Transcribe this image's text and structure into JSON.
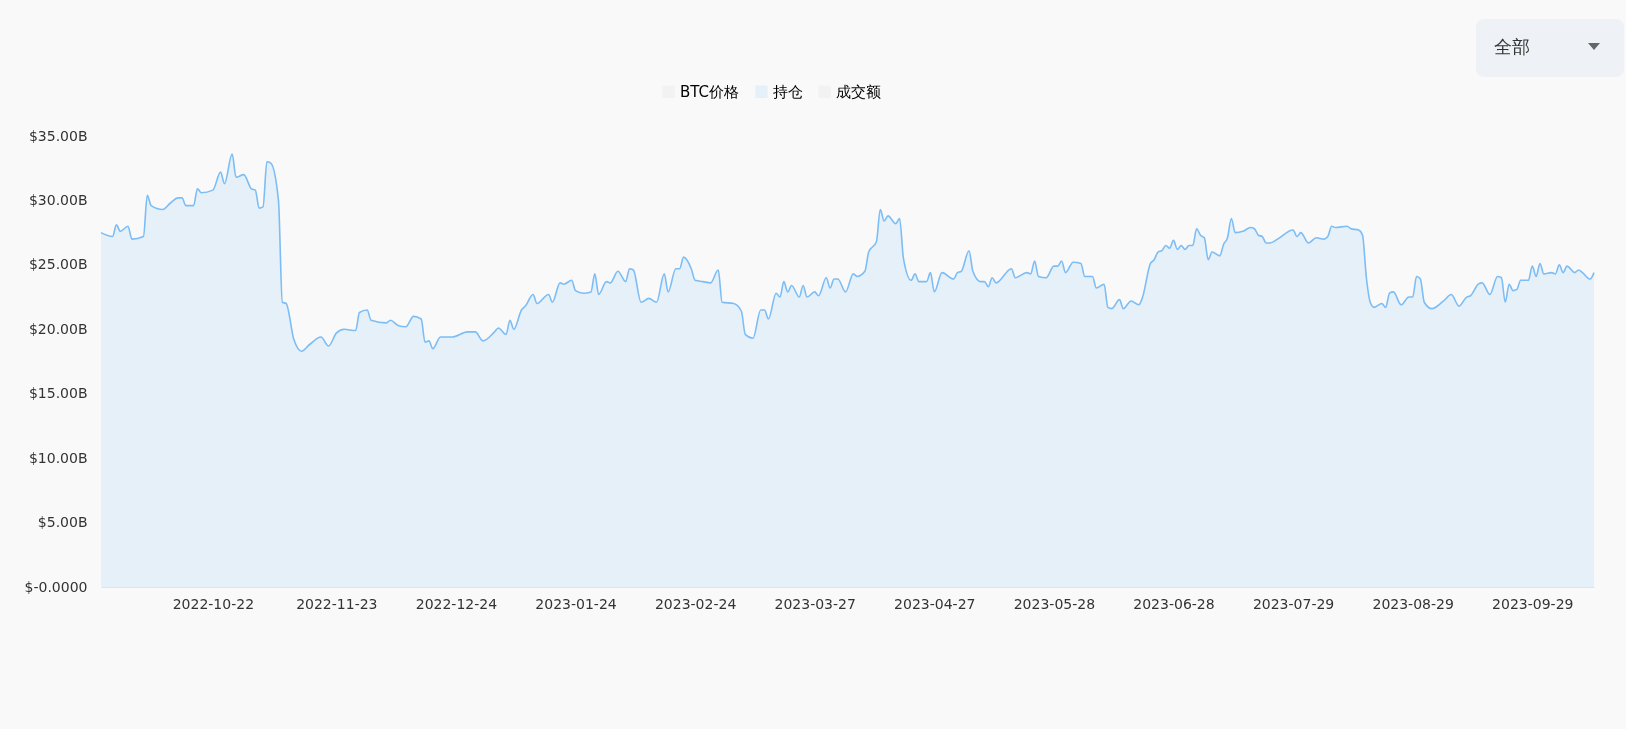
{
  "chart_data": {
    "type": "area",
    "legend": "top",
    "annotations": [
      "全部"
    ],
    "xlim": [
      "2022-09-23",
      "2023-10-15"
    ],
    "xticks": [
      "2022-10-22",
      "2022-11-23",
      "2022-12-24",
      "2023-01-24",
      "2023-02-24",
      "2023-03-27",
      "2023-04-27",
      "2023-05-28",
      "2023-06-28",
      "2023-07-29",
      "2023-08-29",
      "2023-09-29"
    ],
    "ylim": [
      0,
      35
    ],
    "yticks": [
      {
        "value": 0,
        "label": "$-0.0000"
      },
      {
        "value": 5,
        "label": "$5.00B"
      },
      {
        "value": 10,
        "label": "$10.00B"
      },
      {
        "value": 15,
        "label": "$15.00B"
      },
      {
        "value": 20,
        "label": "$20.00B"
      },
      {
        "value": 25,
        "label": "$25.00B"
      },
      {
        "value": 30,
        "label": "$30.00B"
      },
      {
        "value": 35,
        "label": "$35.00B"
      }
    ],
    "series": [
      {
        "name": "BTC价格",
        "color": "#cccccc"
      },
      {
        "name": "持仓",
        "color": "#7cbdf5",
        "x": [
          "2022-09-23",
          "2022-09-26",
          "2022-09-27",
          "2022-09-28",
          "2022-09-30",
          "2022-10-01",
          "2022-10-04",
          "2022-10-05",
          "2022-10-06",
          "2022-10-09",
          "2022-10-11",
          "2022-10-13",
          "2022-10-14",
          "2022-10-15",
          "2022-10-17",
          "2022-10-18",
          "2022-10-19",
          "2022-10-22",
          "2022-10-24",
          "2022-10-25",
          "2022-10-27",
          "2022-10-28",
          "2022-10-30",
          "2022-11-01",
          "2022-11-02",
          "2022-11-03",
          "2022-11-04",
          "2022-11-05",
          "2022-11-06",
          "2022-11-08",
          "2022-11-09",
          "2022-11-10",
          "2022-11-12",
          "2022-11-14",
          "2022-11-16",
          "2022-11-19",
          "2022-11-21",
          "2022-11-23",
          "2022-11-25",
          "2022-11-28",
          "2022-11-29",
          "2022-12-01",
          "2022-12-02",
          "2022-12-06",
          "2022-12-07",
          "2022-12-09",
          "2022-12-11",
          "2022-12-13",
          "2022-12-15",
          "2022-12-16",
          "2022-12-17",
          "2022-12-18",
          "2022-12-20",
          "2022-12-23",
          "2022-12-27",
          "2022-12-29",
          "2022-12-31",
          "2023-01-03",
          "2023-01-04",
          "2023-01-06",
          "2023-01-07",
          "2023-01-08",
          "2023-01-10",
          "2023-01-11",
          "2023-01-13",
          "2023-01-14",
          "2023-01-17",
          "2023-01-18",
          "2023-01-20",
          "2023-01-21",
          "2023-01-23",
          "2023-01-24",
          "2023-01-26",
          "2023-01-28",
          "2023-01-29",
          "2023-01-30",
          "2023-02-01",
          "2023-02-02",
          "2023-02-04",
          "2023-02-06",
          "2023-02-07",
          "2023-02-08",
          "2023-02-10",
          "2023-02-12",
          "2023-02-14",
          "2023-02-16",
          "2023-02-17",
          "2023-02-19",
          "2023-02-20",
          "2023-02-21",
          "2023-02-23",
          "2023-02-24",
          "2023-02-26",
          "2023-02-28",
          "2023-03-02",
          "2023-03-03",
          "2023-03-06",
          "2023-03-08",
          "2023-03-09",
          "2023-03-11",
          "2023-03-13",
          "2023-03-14",
          "2023-03-15",
          "2023-03-17",
          "2023-03-18",
          "2023-03-19",
          "2023-03-20",
          "2023-03-21",
          "2023-03-23",
          "2023-03-24",
          "2023-03-25",
          "2023-03-27",
          "2023-03-28",
          "2023-03-30",
          "2023-03-31",
          "2023-04-01",
          "2023-04-02",
          "2023-04-04",
          "2023-04-06",
          "2023-04-07",
          "2023-04-09",
          "2023-04-10",
          "2023-04-12",
          "2023-04-13",
          "2023-04-14",
          "2023-04-15",
          "2023-04-17",
          "2023-04-18",
          "2023-04-19",
          "2023-04-21",
          "2023-04-22",
          "2023-04-23",
          "2023-04-25",
          "2023-04-26",
          "2023-04-27",
          "2023-04-29",
          "2023-05-02",
          "2023-05-03",
          "2023-05-04",
          "2023-05-06",
          "2023-05-07",
          "2023-05-09",
          "2023-05-10",
          "2023-05-11",
          "2023-05-12",
          "2023-05-13",
          "2023-05-17",
          "2023-05-18",
          "2023-05-21",
          "2023-05-22",
          "2023-05-23",
          "2023-05-24",
          "2023-05-26",
          "2023-05-28",
          "2023-05-29",
          "2023-05-30",
          "2023-05-31",
          "2023-06-02",
          "2023-06-04",
          "2023-06-05",
          "2023-06-07",
          "2023-06-08",
          "2023-06-10",
          "2023-06-11",
          "2023-06-12",
          "2023-06-14",
          "2023-06-15",
          "2023-06-17",
          "2023-06-19",
          "2023-06-20",
          "2023-06-22",
          "2023-06-23",
          "2023-06-24",
          "2023-06-25",
          "2023-06-26",
          "2023-06-27",
          "2023-06-28",
          "2023-06-29",
          "2023-06-30",
          "2023-07-01",
          "2023-07-02",
          "2023-07-03",
          "2023-07-04",
          "2023-07-05",
          "2023-07-06",
          "2023-07-07",
          "2023-07-08",
          "2023-07-10",
          "2023-07-11",
          "2023-07-12",
          "2023-07-13",
          "2023-07-14",
          "2023-07-16",
          "2023-07-18",
          "2023-07-19",
          "2023-07-20",
          "2023-07-21",
          "2023-07-22",
          "2023-07-23",
          "2023-07-25",
          "2023-07-29",
          "2023-07-30",
          "2023-07-31",
          "2023-08-02",
          "2023-08-04",
          "2023-08-06",
          "2023-08-07",
          "2023-08-08",
          "2023-08-09",
          "2023-08-12",
          "2023-08-13",
          "2023-08-15",
          "2023-08-16",
          "2023-08-17",
          "2023-08-18",
          "2023-08-19",
          "2023-08-21",
          "2023-08-22",
          "2023-08-23",
          "2023-08-24",
          "2023-08-26",
          "2023-08-28",
          "2023-08-29",
          "2023-08-30",
          "2023-08-31",
          "2023-09-01",
          "2023-09-03",
          "2023-09-06",
          "2023-09-08",
          "2023-09-10",
          "2023-09-12",
          "2023-09-13",
          "2023-09-15",
          "2023-09-16",
          "2023-09-18",
          "2023-09-20",
          "2023-09-21",
          "2023-09-22",
          "2023-09-23",
          "2023-09-24",
          "2023-09-25",
          "2023-09-26",
          "2023-09-28",
          "2023-09-29",
          "2023-09-30",
          "2023-10-01",
          "2023-10-02",
          "2023-10-04",
          "2023-10-05",
          "2023-10-06",
          "2023-10-07",
          "2023-10-08",
          "2023-10-10",
          "2023-10-11",
          "2023-10-12",
          "2023-10-14",
          "2023-10-15"
        ],
        "values": [
          27.5,
          27.2,
          28.1,
          27.6,
          28.0,
          27.0,
          27.2,
          30.4,
          29.6,
          29.3,
          29.8,
          30.2,
          30.2,
          29.6,
          29.6,
          30.9,
          30.6,
          30.8,
          32.2,
          31.3,
          33.6,
          31.8,
          32.0,
          30.9,
          30.8,
          29.4,
          29.5,
          33.0,
          32.9,
          30.0,
          22.1,
          22.0,
          19.2,
          18.3,
          18.8,
          19.4,
          18.7,
          19.7,
          20.0,
          19.9,
          21.3,
          21.5,
          20.7,
          20.5,
          20.7,
          20.3,
          20.2,
          21.0,
          20.8,
          19.0,
          19.1,
          18.5,
          19.4,
          19.4,
          19.8,
          19.8,
          19.1,
          19.8,
          20.1,
          19.6,
          20.7,
          20.0,
          21.5,
          21.8,
          22.7,
          22.0,
          22.7,
          22.1,
          23.6,
          23.5,
          23.8,
          23.0,
          22.8,
          22.9,
          24.3,
          22.7,
          23.7,
          23.6,
          24.5,
          23.7,
          24.7,
          24.6,
          22.1,
          22.4,
          22.1,
          24.3,
          22.9,
          24.7,
          24.7,
          25.6,
          24.7,
          23.8,
          23.7,
          23.6,
          24.6,
          22.1,
          22.0,
          21.4,
          19.6,
          19.3,
          21.5,
          21.5,
          20.8,
          22.8,
          22.5,
          23.7,
          22.9,
          23.4,
          22.5,
          23.4,
          22.5,
          22.9,
          22.6,
          24.0,
          23.2,
          23.9,
          23.9,
          22.9,
          24.3,
          24.1,
          24.5,
          26.0,
          26.8,
          29.3,
          28.4,
          28.8,
          28.2,
          28.6,
          25.5,
          23.8,
          24.3,
          23.7,
          23.7,
          24.4,
          22.9,
          24.4,
          23.9,
          24.4,
          24.5,
          26.1,
          24.5,
          23.7,
          23.7,
          23.3,
          24.0,
          23.6,
          24.7,
          24.0,
          24.4,
          24.3,
          25.3,
          24.1,
          24.0,
          24.9,
          24.9,
          25.3,
          24.4,
          25.2,
          25.1,
          24.1,
          24.1,
          23.2,
          23.5,
          21.7,
          21.6,
          22.3,
          21.6,
          22.2,
          21.9,
          22.5,
          25.1,
          25.4,
          26.0,
          26.1,
          26.5,
          26.3,
          26.9,
          26.2,
          26.5,
          26.2,
          26.5,
          26.5,
          27.8,
          27.3,
          27.1,
          25.4,
          26.0,
          25.7,
          26.6,
          27.1,
          28.6,
          27.5,
          27.6,
          27.9,
          27.8,
          27.3,
          27.2,
          26.7,
          26.7,
          27.0,
          27.7,
          27.2,
          27.5,
          26.7,
          27.1,
          27.0,
          27.2,
          28.0,
          27.9,
          28.0,
          27.8,
          27.7,
          27.3,
          24.0,
          22.1,
          21.7,
          22.0,
          21.7,
          22.8,
          22.9,
          21.9,
          22.5,
          22.5,
          24.1,
          23.9,
          22.1,
          21.6,
          22.2,
          22.7,
          21.8,
          22.5,
          22.6,
          23.5,
          23.6,
          22.7,
          24.1,
          24.0,
          22.1,
          23.5,
          23.0,
          23.1,
          23.8,
          23.8,
          24.9,
          24.1,
          25.1,
          24.3,
          24.4,
          24.3,
          25.0,
          24.4,
          24.9,
          24.4,
          24.6,
          24.4,
          23.9,
          24.4
        ]
      },
      {
        "name": "成交额",
        "color": "#cccccc"
      }
    ]
  }
}
